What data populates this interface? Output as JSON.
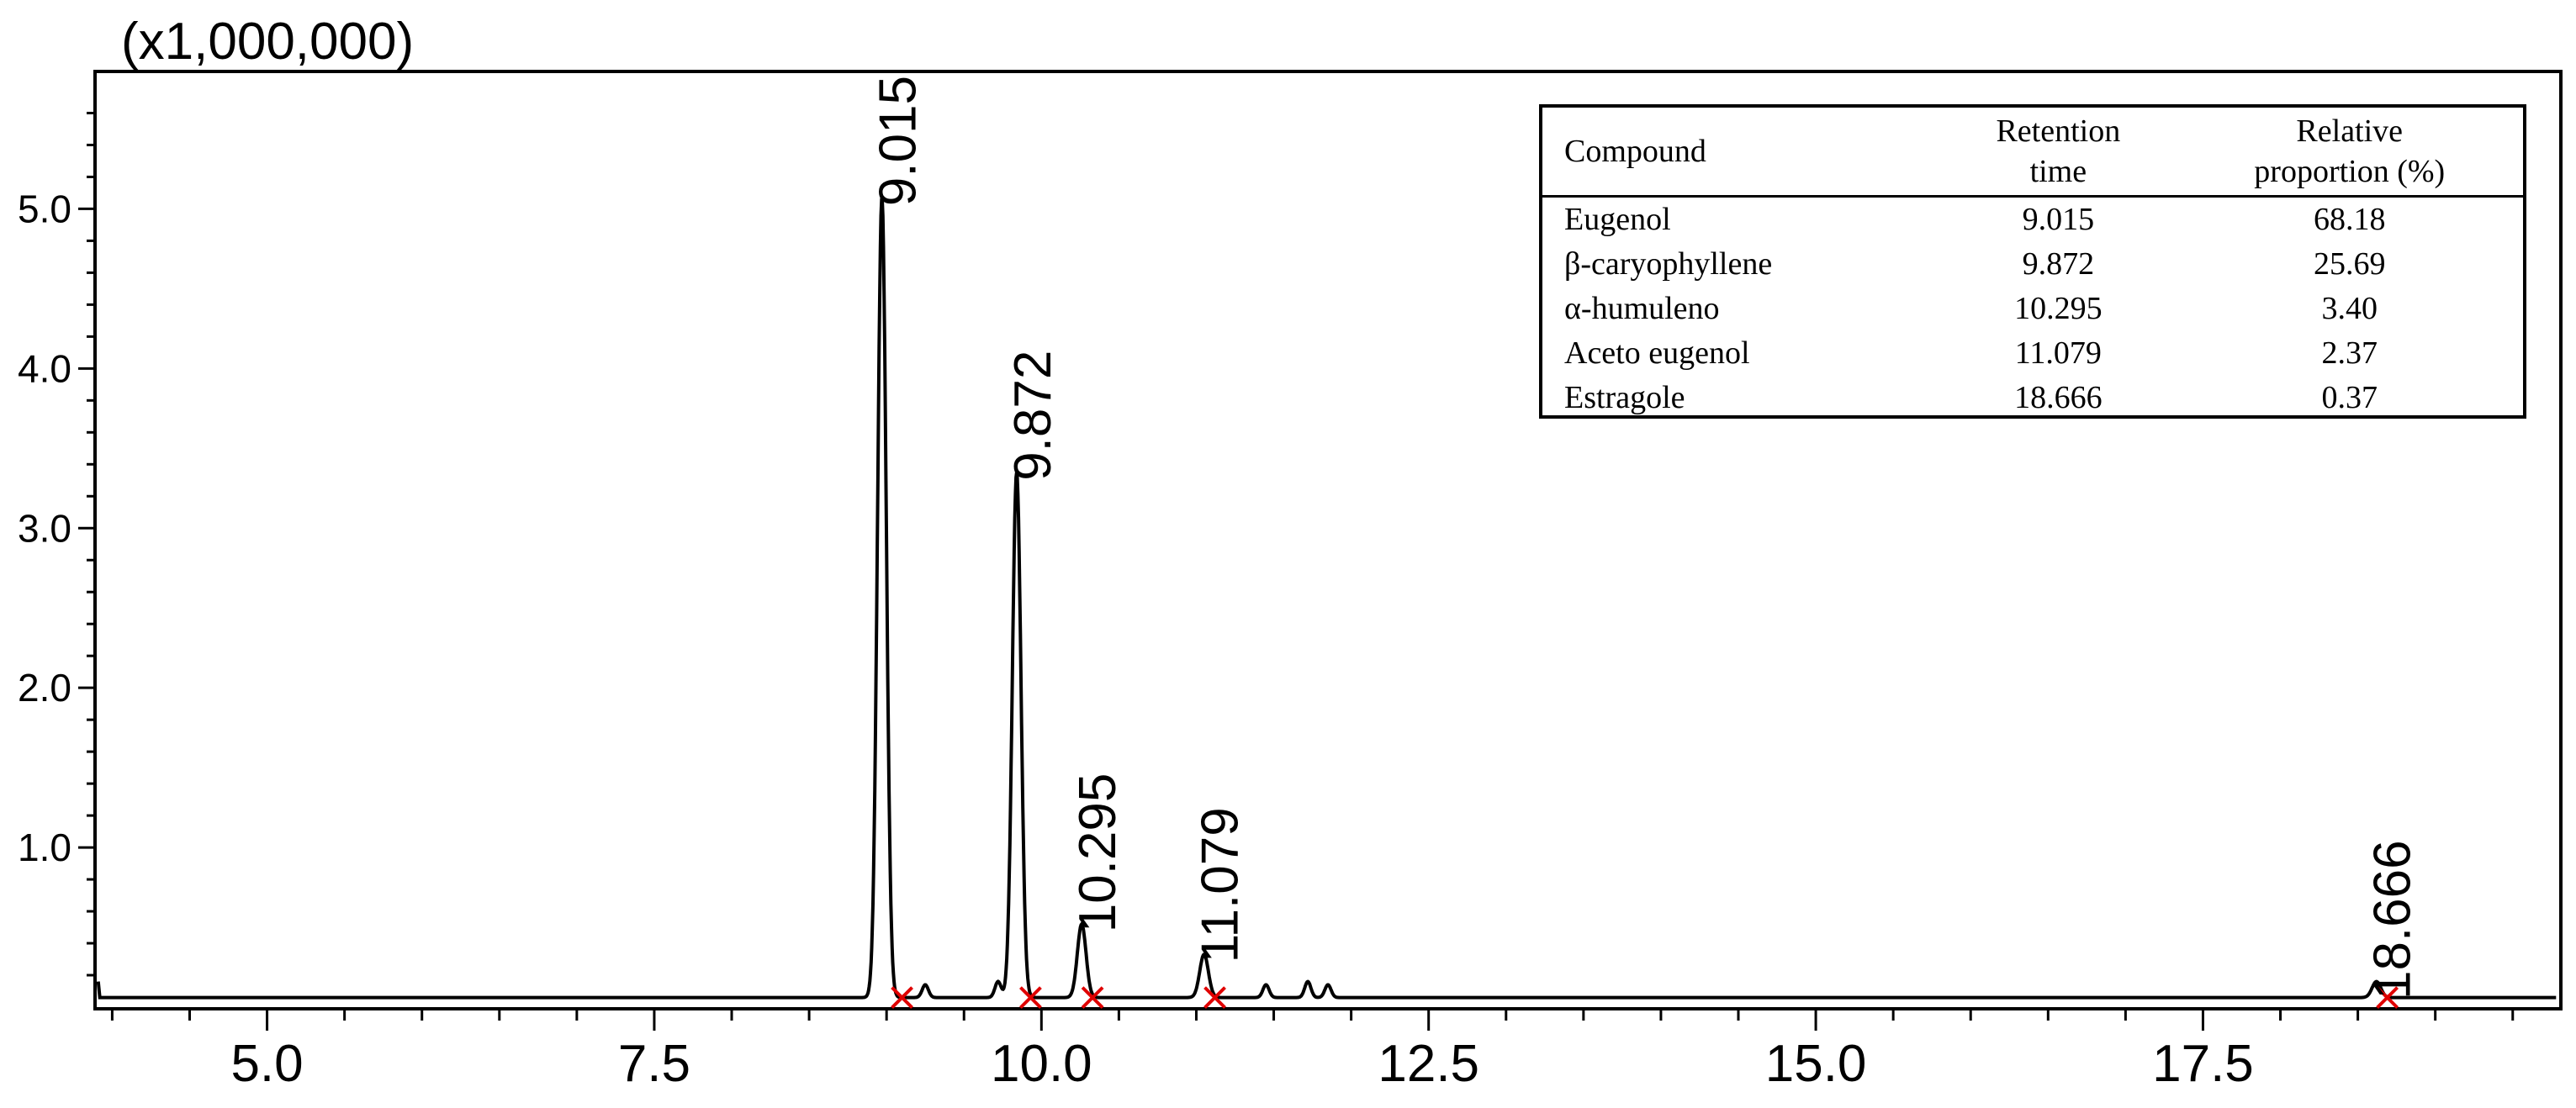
{
  "chart_data": {
    "type": "line",
    "multiplier_label": "(x1,000,000)",
    "xlim": [
      3.9,
      19.8
    ],
    "ylim": [
      0,
      5.85
    ],
    "baseline": 0.06,
    "x_ticks": [
      "5.0",
      "7.5",
      "10.0",
      "12.5",
      "15.0",
      "17.5"
    ],
    "x_tick_values": [
      5.0,
      7.5,
      10.0,
      12.5,
      15.0,
      17.5
    ],
    "y_ticks": [
      "1.0",
      "2.0",
      "3.0",
      "4.0",
      "5.0"
    ],
    "y_tick_values": [
      1.0,
      2.0,
      3.0,
      4.0,
      5.0
    ],
    "peaks": [
      {
        "label": "9.015",
        "x": 9.015,
        "apex": 8.97,
        "height": 5.07
      },
      {
        "label": "9.872",
        "x": 9.872,
        "apex": 9.84,
        "height": 3.35
      },
      {
        "label": "10.295",
        "x": 10.295,
        "apex": 10.26,
        "height": 0.52
      },
      {
        "label": "11.079",
        "x": 11.079,
        "apex": 11.05,
        "height": 0.33
      },
      {
        "label": "18.666",
        "x": 18.666,
        "apex": 18.62,
        "height": 0.1
      }
    ],
    "minor_peaks": [
      {
        "x": 9.25,
        "height": 0.08
      },
      {
        "x": 9.72,
        "height": 0.1
      },
      {
        "x": 11.45,
        "height": 0.08
      },
      {
        "x": 11.72,
        "height": 0.1
      },
      {
        "x": 11.85,
        "height": 0.08
      }
    ],
    "integration_markers": [
      9.1,
      9.93,
      10.33,
      11.12,
      18.69
    ],
    "colors": {
      "trace": "#000000",
      "marker": "#e00000",
      "axis": "#000000"
    }
  },
  "table": {
    "headers": [
      {
        "line1": "Compound",
        "line2": ""
      },
      {
        "line1": "Retention",
        "line2": "time"
      },
      {
        "line1": "Relative",
        "line2": "proportion (%)"
      }
    ],
    "rows": [
      {
        "compound": "Eugenol",
        "retention_time": "9.015",
        "relative_proportion": "68.18"
      },
      {
        "compound": "β-caryophyllene",
        "retention_time": "9.872",
        "relative_proportion": "25.69"
      },
      {
        "compound": "α-humuleno",
        "retention_time": "10.295",
        "relative_proportion": "3.40"
      },
      {
        "compound": "Aceto eugenol",
        "retention_time": "11.079",
        "relative_proportion": "2.37"
      },
      {
        "compound": "Estragole",
        "retention_time": "18.666",
        "relative_proportion": "0.37"
      }
    ]
  }
}
